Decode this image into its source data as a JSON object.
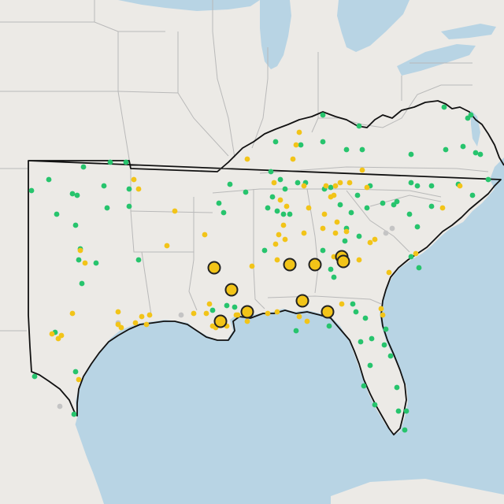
{
  "map": {
    "colors": {
      "land": "#eceae6",
      "water": "#b8d4e4",
      "state_border": "#b9b9b9",
      "region_border": "#111111",
      "green_dot": "#27c46d",
      "yellow_dot": "#f2c418",
      "gray_dot": "#c4c4c4",
      "large_marker_fill": "#f2c418",
      "large_marker_stroke": "#222222"
    },
    "marker_categories": [
      "green",
      "yellow",
      "gray",
      "large-yellow"
    ]
  }
}
